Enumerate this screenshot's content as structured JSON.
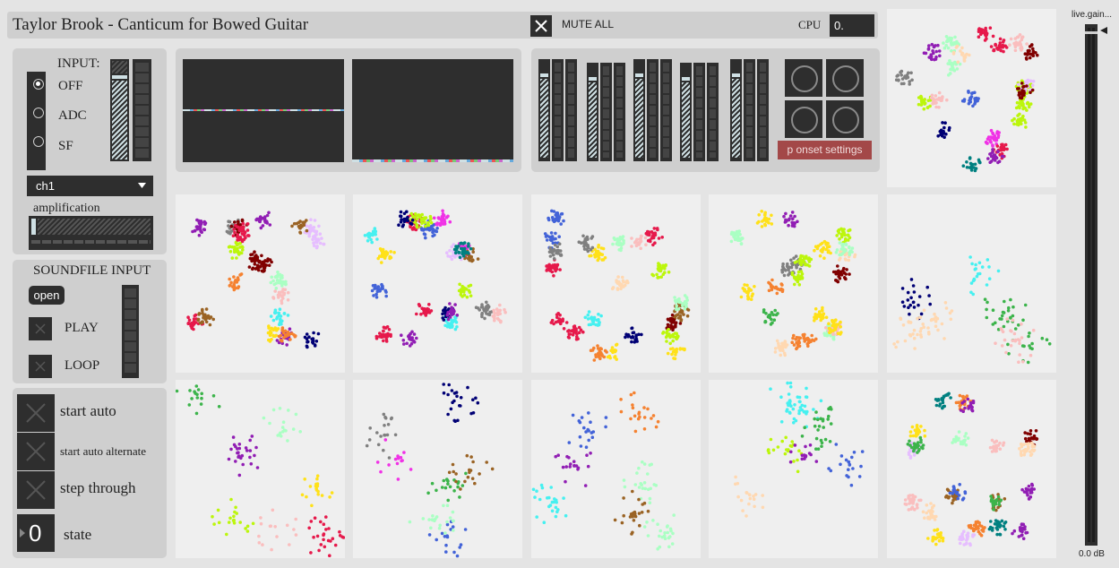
{
  "header": {
    "title": "Taylor Brook - Canticum for Bowed Guitar",
    "mute_label": "MUTE ALL",
    "cpu_label": "CPU",
    "cpu_value": "0."
  },
  "input_panel": {
    "title": "INPUT:",
    "options": [
      "OFF",
      "ADC",
      "SF"
    ],
    "selected": "OFF",
    "channel": "ch1",
    "amplification_label": "amplification"
  },
  "soundfile_panel": {
    "title": "SOUNDFILE INPUT",
    "open_label": "open",
    "play_label": "PLAY",
    "loop_label": "LOOP"
  },
  "control_panel": {
    "start_auto_label": "start auto",
    "start_auto_alternate_label": "start auto alternate",
    "step_through_label": "step through",
    "state_value": "0",
    "state_label": "state"
  },
  "onset": {
    "settings_label": "p onset settings"
  },
  "gain": {
    "label": "live.gain...",
    "value_text": "0.0 dB"
  },
  "colors": {
    "panel": "#cfcfcf",
    "dark": "#2e2e2e",
    "onset_button": "#a34848",
    "meter_accent": "#cfe0e4"
  }
}
